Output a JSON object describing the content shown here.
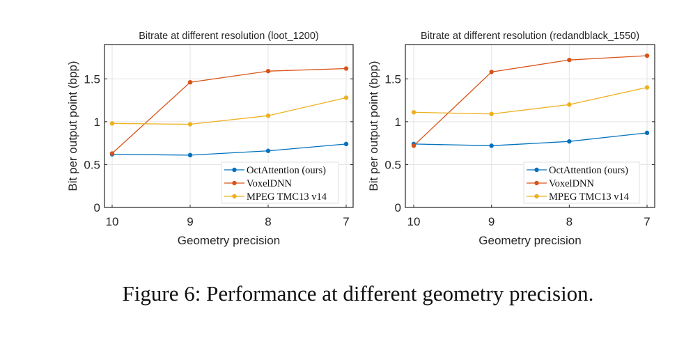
{
  "caption": "Figure 6: Performance at different geometry precision.",
  "colors": {
    "OctAttention (ours)": "#0072BD",
    "VoxelDNN": "#D95319",
    "MPEG TMC13 v14": "#EDB120"
  },
  "chart_data": [
    {
      "type": "line",
      "title": "Bitrate at different resolution (loot_1200)",
      "xlabel": "Geometry precision",
      "ylabel": "Bit per output point (bpp)",
      "categories": [
        "10",
        "9",
        "8",
        "7"
      ],
      "yticks": [
        "0",
        "0.5",
        "1",
        "1.5"
      ],
      "ylim": [
        0,
        1.9
      ],
      "grid": true,
      "legend": "bottom-right",
      "series": [
        {
          "name": "OctAttention (ours)",
          "values": [
            0.62,
            0.61,
            0.66,
            0.74
          ]
        },
        {
          "name": "VoxelDNN",
          "values": [
            0.63,
            1.46,
            1.59,
            1.62
          ]
        },
        {
          "name": "MPEG TMC13 v14",
          "values": [
            0.98,
            0.97,
            1.07,
            1.28
          ]
        }
      ]
    },
    {
      "type": "line",
      "title": "Bitrate at different resolution (redandblack_1550)",
      "xlabel": "Geometry precision",
      "ylabel": "Bit per output point (bpp)",
      "categories": [
        "10",
        "9",
        "8",
        "7"
      ],
      "yticks": [
        "0",
        "0.5",
        "1",
        "1.5"
      ],
      "ylim": [
        0,
        1.9
      ],
      "grid": true,
      "legend": "bottom-right",
      "series": [
        {
          "name": "OctAttention (ours)",
          "values": [
            0.74,
            0.72,
            0.77,
            0.87
          ]
        },
        {
          "name": "VoxelDNN",
          "values": [
            0.72,
            1.58,
            1.72,
            1.77
          ]
        },
        {
          "name": "MPEG TMC13 v14",
          "values": [
            1.11,
            1.09,
            1.2,
            1.4
          ]
        }
      ]
    }
  ]
}
